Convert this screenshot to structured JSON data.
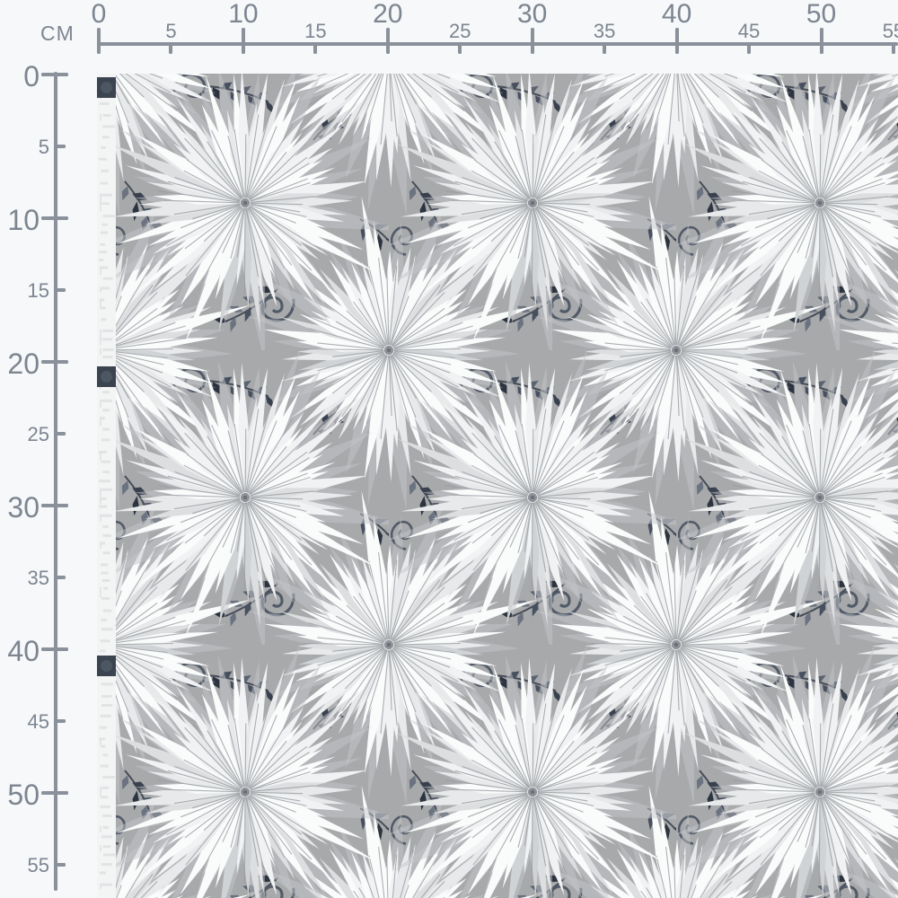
{
  "page": {
    "background": "#f6f8f9"
  },
  "rulers": {
    "unit_label": "CM",
    "tick_values": [
      0,
      5,
      10,
      15,
      20,
      25,
      30,
      35,
      40,
      45,
      50,
      55
    ],
    "axis_color": "#8a919b",
    "label_color": "#7d8591"
  },
  "fabric": {
    "description": "gray fan-palm leaf print fabric swatch with white selvage edge",
    "background": "#a8a9ab",
    "leaf_light": "#fafbfb",
    "leaf_mid": "#e7e9ea",
    "leaf_shadow": "#c4c6c9",
    "vein": "#999da1",
    "foliage_dark": "#39414f",
    "scroll": "#4c5563",
    "selvage": "#f3f4f4",
    "selvage_tick": "#dfe2e3",
    "selvage_mark": "#3b4350"
  }
}
